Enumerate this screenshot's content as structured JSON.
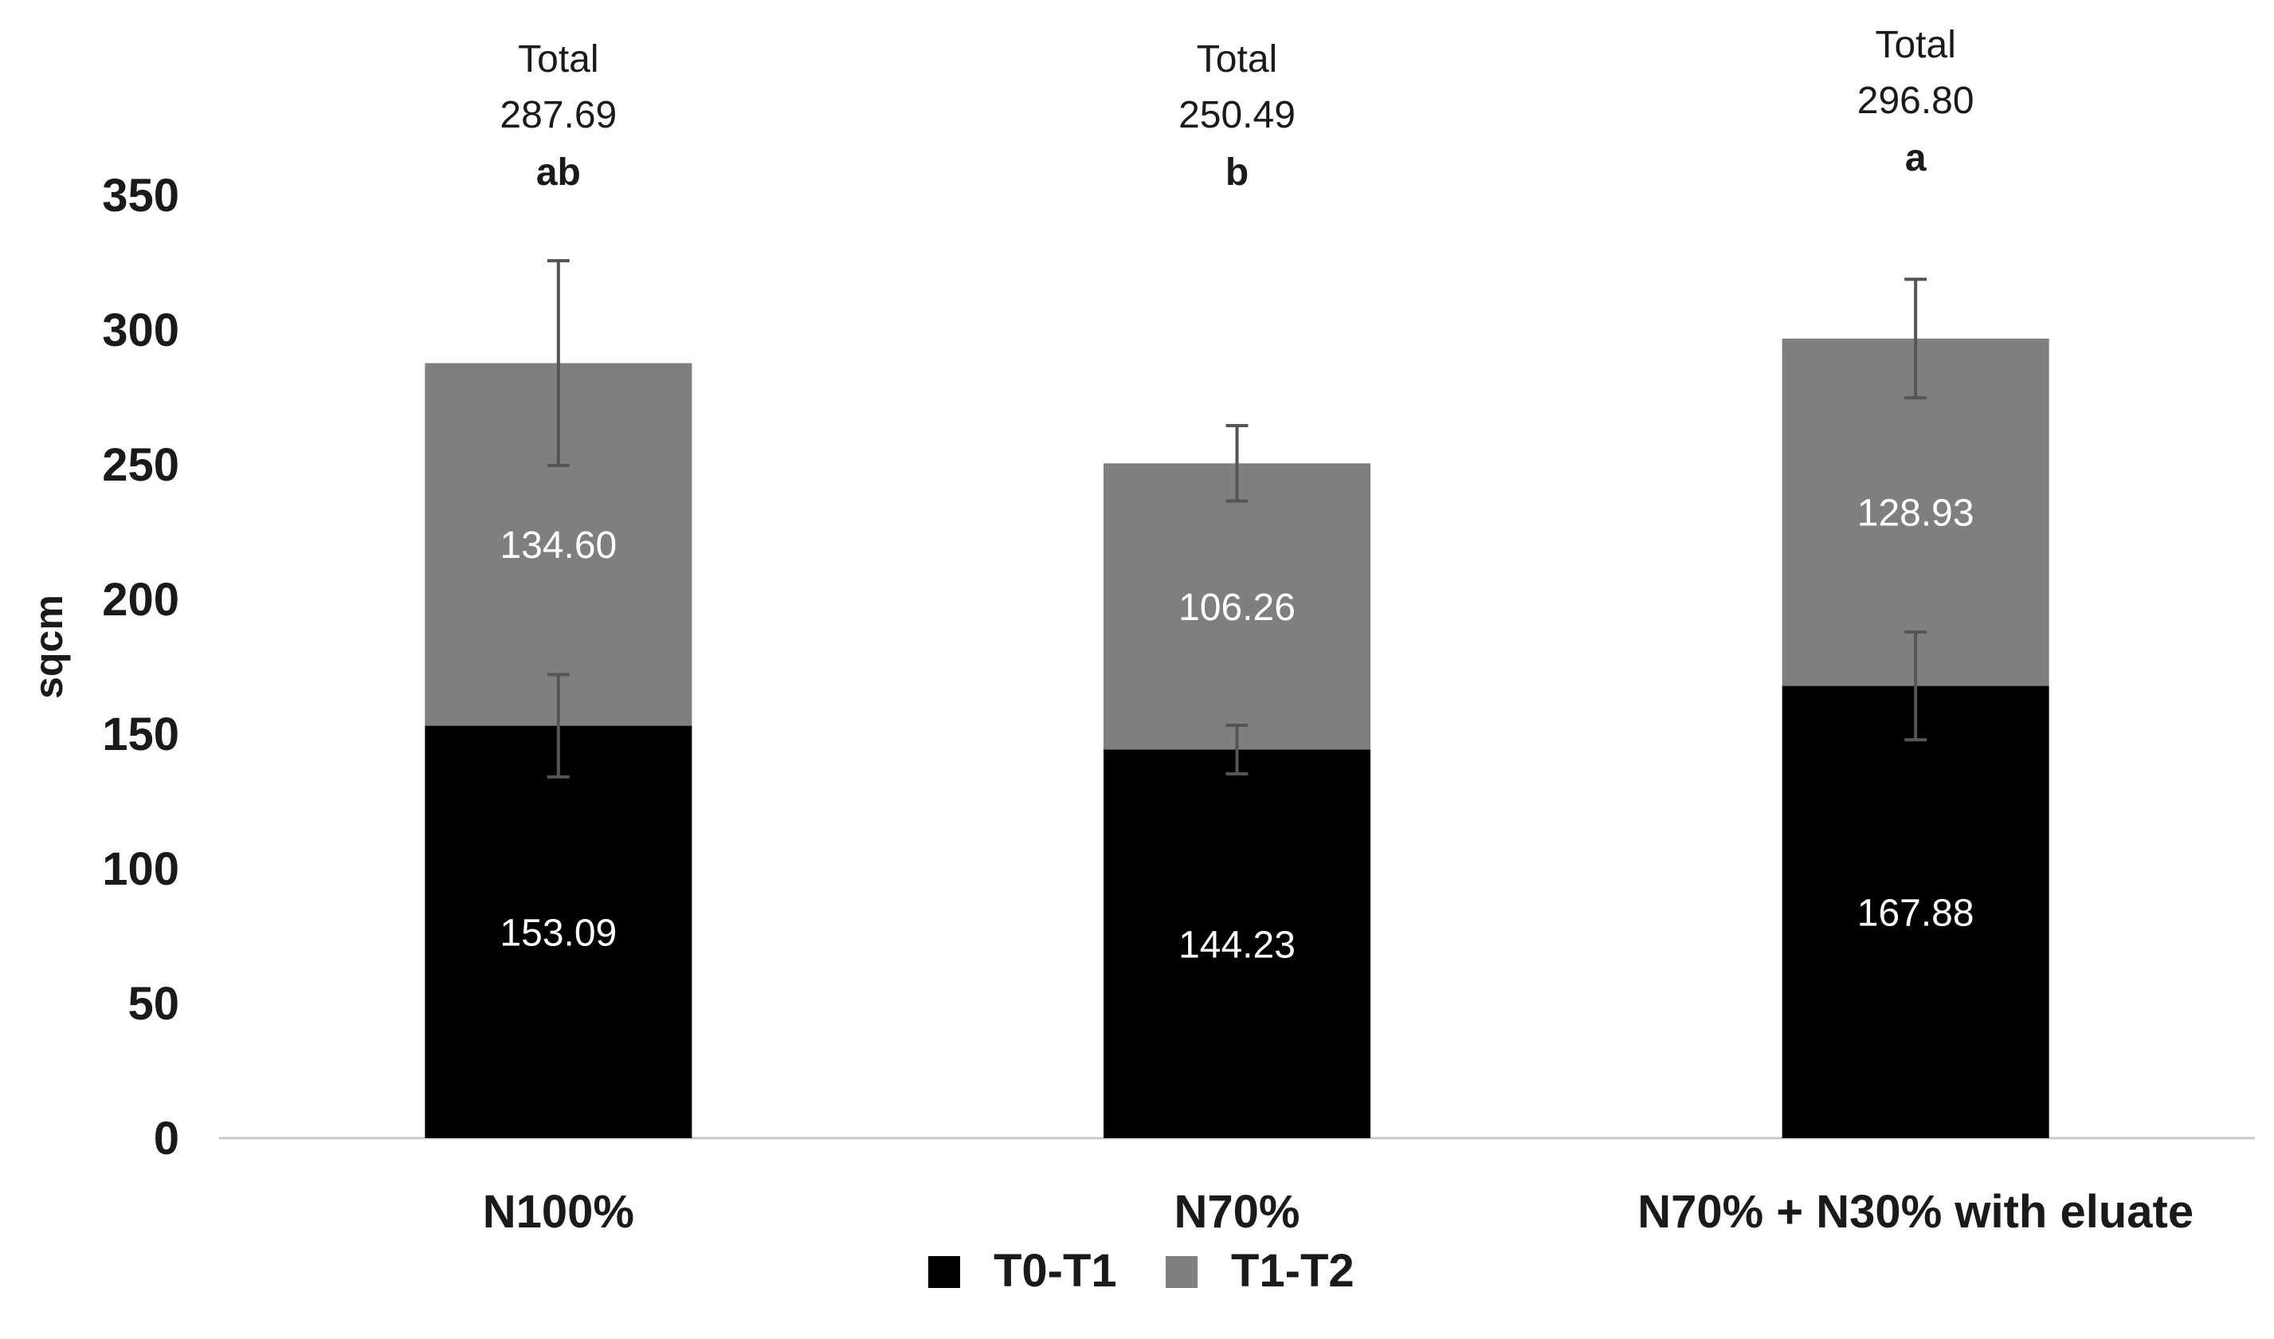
{
  "chart_data": {
    "type": "bar",
    "stacked": true,
    "categories": [
      "N100%",
      "N70%",
      "N70% + N30% with eluate"
    ],
    "series": [
      {
        "name": "T0-T1",
        "color": "#000000",
        "values": [
          153.09,
          144.23,
          167.88
        ],
        "labels": [
          "153.09",
          "144.23",
          "167.88"
        ],
        "errors": [
          19,
          9,
          20
        ]
      },
      {
        "name": "T1-T2",
        "color": "#7f7f7f",
        "values": [
          134.6,
          106.26,
          128.93
        ],
        "labels": [
          "134.60",
          "106.26",
          "128.93"
        ],
        "errors": [
          38,
          14,
          22
        ]
      }
    ],
    "totals": {
      "word": "Total",
      "values": [
        "287.69",
        "250.49",
        "296.80"
      ],
      "letters": [
        "ab",
        "b",
        "a"
      ]
    },
    "ylabel": "sqcm",
    "ylim": [
      0,
      350
    ],
    "yticks": [
      0,
      50,
      100,
      150,
      200,
      250,
      300,
      350
    ],
    "grid": false,
    "legend_position": "bottom"
  }
}
